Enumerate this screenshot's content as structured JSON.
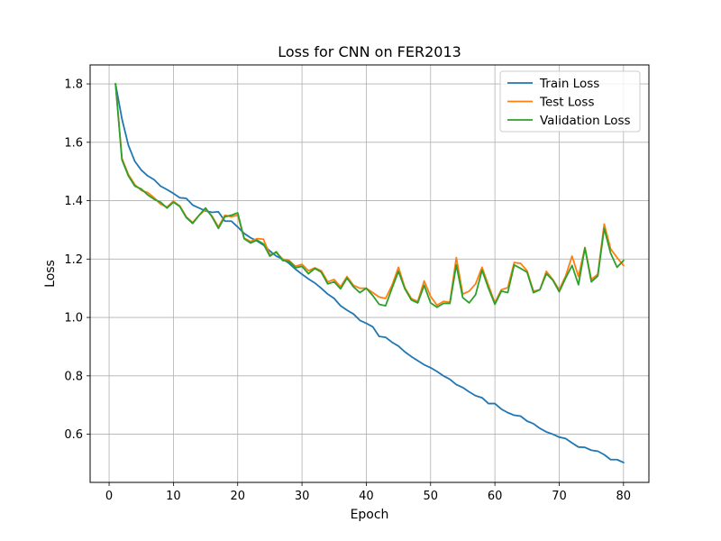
{
  "chart_data": {
    "type": "line",
    "title": "Loss for CNN on FER2013",
    "xlabel": "Epoch",
    "ylabel": "Loss",
    "xlim": [
      -2.95,
      83.95
    ],
    "ylim": [
      0.435,
      1.865
    ],
    "xticks": [
      0,
      10,
      20,
      30,
      40,
      50,
      60,
      70,
      80
    ],
    "yticks": [
      0.6,
      0.8,
      1.0,
      1.2,
      1.4,
      1.6,
      1.8
    ],
    "xtick_labels": [
      "0",
      "10",
      "20",
      "30",
      "40",
      "50",
      "60",
      "70",
      "80"
    ],
    "ytick_labels": [
      "0.6",
      "0.8",
      "1.0",
      "1.2",
      "1.4",
      "1.6",
      "1.8"
    ],
    "grid": true,
    "legend_position": "top-right",
    "x": [
      1,
      2,
      3,
      4,
      5,
      6,
      7,
      8,
      9,
      10,
      11,
      12,
      13,
      14,
      15,
      16,
      17,
      18,
      19,
      20,
      21,
      22,
      23,
      24,
      25,
      26,
      27,
      28,
      29,
      30,
      31,
      32,
      33,
      34,
      35,
      36,
      37,
      38,
      39,
      40,
      41,
      42,
      43,
      44,
      45,
      46,
      47,
      48,
      49,
      50,
      51,
      52,
      53,
      54,
      55,
      56,
      57,
      58,
      59,
      60,
      61,
      62,
      63,
      64,
      65,
      66,
      67,
      68,
      69,
      70,
      71,
      72,
      73,
      74,
      75,
      76,
      77,
      78,
      79,
      80
    ],
    "series": [
      {
        "name": "Train Loss",
        "color": "#1f77b4",
        "values": [
          1.8,
          1.68,
          1.59,
          1.535,
          1.505,
          1.485,
          1.472,
          1.45,
          1.438,
          1.425,
          1.41,
          1.408,
          1.385,
          1.375,
          1.365,
          1.36,
          1.362,
          1.33,
          1.33,
          1.31,
          1.288,
          1.273,
          1.262,
          1.248,
          1.228,
          1.21,
          1.2,
          1.185,
          1.165,
          1.148,
          1.132,
          1.118,
          1.1,
          1.08,
          1.065,
          1.04,
          1.025,
          1.012,
          0.99,
          0.98,
          0.968,
          0.935,
          0.932,
          0.915,
          0.902,
          0.882,
          0.866,
          0.852,
          0.838,
          0.828,
          0.815,
          0.8,
          0.788,
          0.77,
          0.76,
          0.745,
          0.732,
          0.725,
          0.705,
          0.705,
          0.686,
          0.674,
          0.665,
          0.662,
          0.645,
          0.636,
          0.62,
          0.608,
          0.6,
          0.59,
          0.585,
          0.57,
          0.556,
          0.555,
          0.545,
          0.542,
          0.53,
          0.513,
          0.513,
          0.503
        ]
      },
      {
        "name": "Test Loss",
        "color": "#ff7f0e",
        "values": [
          1.8,
          1.545,
          1.49,
          1.455,
          1.435,
          1.428,
          1.41,
          1.388,
          1.378,
          1.398,
          1.382,
          1.345,
          1.325,
          1.35,
          1.37,
          1.348,
          1.31,
          1.35,
          1.345,
          1.35,
          1.272,
          1.26,
          1.27,
          1.268,
          1.215,
          1.222,
          1.2,
          1.195,
          1.175,
          1.182,
          1.16,
          1.17,
          1.16,
          1.122,
          1.13,
          1.105,
          1.14,
          1.11,
          1.1,
          1.1,
          1.085,
          1.07,
          1.065,
          1.11,
          1.172,
          1.102,
          1.065,
          1.055,
          1.125,
          1.072,
          1.042,
          1.055,
          1.052,
          1.205,
          1.08,
          1.09,
          1.115,
          1.172,
          1.11,
          1.05,
          1.095,
          1.102,
          1.188,
          1.185,
          1.16,
          1.09,
          1.095,
          1.158,
          1.13,
          1.095,
          1.142,
          1.21,
          1.14,
          1.24,
          1.13,
          1.148,
          1.32,
          1.235,
          1.205,
          1.178
        ]
      },
      {
        "name": "Validation Loss",
        "color": "#2ca02c",
        "values": [
          1.8,
          1.54,
          1.485,
          1.45,
          1.44,
          1.42,
          1.405,
          1.395,
          1.375,
          1.395,
          1.38,
          1.342,
          1.322,
          1.35,
          1.375,
          1.345,
          1.305,
          1.345,
          1.35,
          1.358,
          1.27,
          1.255,
          1.265,
          1.252,
          1.21,
          1.225,
          1.195,
          1.192,
          1.17,
          1.175,
          1.15,
          1.168,
          1.155,
          1.115,
          1.122,
          1.098,
          1.135,
          1.105,
          1.085,
          1.1,
          1.075,
          1.045,
          1.04,
          1.1,
          1.158,
          1.098,
          1.06,
          1.05,
          1.11,
          1.05,
          1.035,
          1.048,
          1.048,
          1.18,
          1.068,
          1.05,
          1.078,
          1.162,
          1.1,
          1.045,
          1.09,
          1.085,
          1.18,
          1.168,
          1.155,
          1.085,
          1.095,
          1.15,
          1.128,
          1.088,
          1.135,
          1.178,
          1.112,
          1.238,
          1.122,
          1.142,
          1.305,
          1.22,
          1.172,
          1.195
        ]
      }
    ]
  }
}
